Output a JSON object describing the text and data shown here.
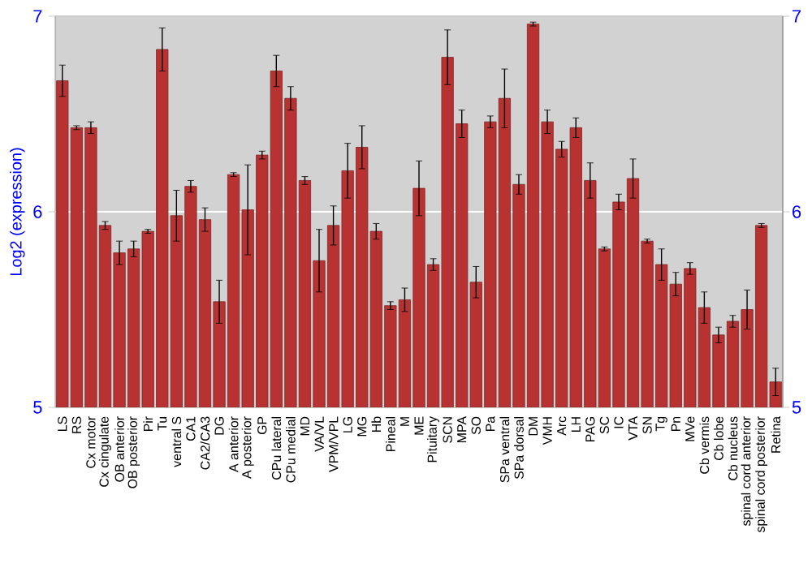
{
  "chart_data": {
    "type": "bar",
    "ylabel": "Log2 (expression)",
    "categories": [
      "LS",
      "RS",
      "Cx motor",
      "Cx cingulate",
      "OB anterior",
      "OB posterior",
      "Pir",
      "Tu",
      "ventral S",
      "CA1",
      "CA2/CA3",
      "DG",
      "A anterior",
      "A posterior",
      "GP",
      "CPu lateral",
      "CPu medial",
      "MD",
      "VA/VL",
      "VPM/VPL",
      "LG",
      "MG",
      "Hb",
      "Pineal",
      "M",
      "ME",
      "Pituitary",
      "SCN",
      "MPA",
      "SO",
      "Pa",
      "SPa ventral",
      "SPa dorsal",
      "DM",
      "VMH",
      "Arc",
      "LH",
      "PAG",
      "SC",
      "IC",
      "VTA",
      "SN",
      "Tg",
      "Pn",
      "MVe",
      "Cb vermis",
      "Cb lobe",
      "Cb nucleus",
      "spinal cord anterior",
      "spinal cord posterior",
      "Retina"
    ],
    "values": [
      6.67,
      6.43,
      6.43,
      5.93,
      5.79,
      5.81,
      5.9,
      6.83,
      5.98,
      6.13,
      5.96,
      5.54,
      6.19,
      6.01,
      6.29,
      6.72,
      6.58,
      6.16,
      5.75,
      5.93,
      6.21,
      6.33,
      5.9,
      5.52,
      5.55,
      6.12,
      5.73,
      6.79,
      6.45,
      5.64,
      6.46,
      6.58,
      6.14,
      6.96,
      6.46,
      6.32,
      6.43,
      6.16,
      5.81,
      6.05,
      6.17,
      5.85,
      5.73,
      5.63,
      5.71,
      5.51,
      5.37,
      5.44,
      5.5,
      5.93,
      5.13
    ],
    "errors": [
      0.08,
      0.01,
      0.03,
      0.02,
      0.06,
      0.04,
      0.01,
      0.11,
      0.13,
      0.03,
      0.06,
      0.11,
      0.01,
      0.23,
      0.02,
      0.08,
      0.06,
      0.02,
      0.16,
      0.1,
      0.14,
      0.11,
      0.04,
      0.02,
      0.06,
      0.14,
      0.03,
      0.14,
      0.07,
      0.08,
      0.03,
      0.15,
      0.05,
      0.01,
      0.06,
      0.04,
      0.05,
      0.09,
      0.01,
      0.04,
      0.1,
      0.01,
      0.08,
      0.06,
      0.03,
      0.08,
      0.04,
      0.03,
      0.1,
      0.01,
      0.07
    ],
    "color": "#b83232",
    "ylim": [
      5,
      7
    ],
    "yticks": [
      5,
      6,
      7
    ],
    "y2lim": [
      5,
      7
    ],
    "y2ticks": [
      5,
      6,
      7
    ],
    "grid": "y"
  }
}
